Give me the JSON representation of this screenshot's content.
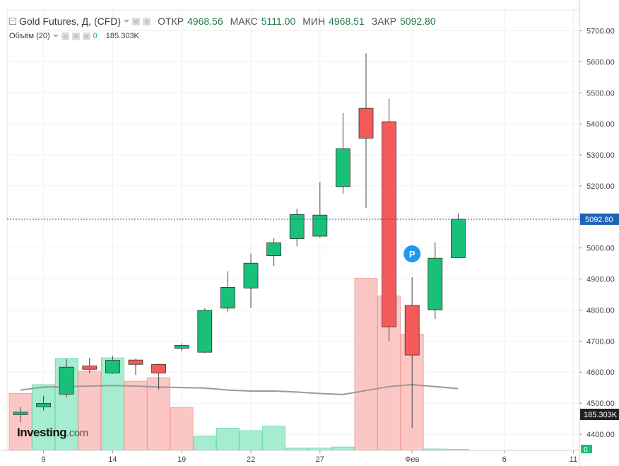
{
  "header": {
    "title": "Gold Futures, Д, (CFD)",
    "ohlc": [
      {
        "label": "ОТКР",
        "value": "4968.56"
      },
      {
        "label": "МАКС",
        "value": "5111.00"
      },
      {
        "label": "МИН",
        "value": "4968.51"
      },
      {
        "label": "ЗАКР",
        "value": "5092.80"
      }
    ]
  },
  "volume_header": {
    "label": "Объём (20)",
    "change": "0",
    "value": "185.303K"
  },
  "logo": {
    "main": "Investing",
    "suffix": ".com"
  },
  "marker": {
    "letter": "P"
  },
  "colors": {
    "up": "#19c078",
    "down": "#f45a5a",
    "vol_up": "#a5ecd0",
    "vol_down": "#fbc7c4",
    "ma": "#999999"
  },
  "chart_data": {
    "type": "candlestick",
    "title": "Gold Futures, Д, (CFD)",
    "y_axis": {
      "ticks": [
        "4400.00",
        "4500.00",
        "4600.00",
        "4700.00",
        "4800.00",
        "4900.00",
        "5000.00",
        "5100.00",
        "5200.00",
        "5300.00",
        "5400.00",
        "5500.00",
        "5600.00",
        "5700.00"
      ],
      "range": [
        4355,
        5728
      ],
      "last_price_label": "5092.80",
      "volume_label": "185.303K",
      "bottom_label": "0"
    },
    "x_axis": {
      "ticks": [
        {
          "label": "9",
          "index": 1
        },
        {
          "label": "14",
          "index": 4
        },
        {
          "label": "19",
          "index": 7
        },
        {
          "label": "22",
          "index": 10
        },
        {
          "label": "27",
          "index": 13
        },
        {
          "label": "Фев",
          "index": 17
        },
        {
          "label": "6",
          "index": 21
        },
        {
          "label": "11",
          "index": 24
        }
      ]
    },
    "candles": [
      {
        "o": 4463,
        "h": 4488,
        "l": 4438,
        "c": 4471
      },
      {
        "o": 4488,
        "h": 4524,
        "l": 4476,
        "c": 4499
      },
      {
        "o": 4529,
        "h": 4642,
        "l": 4520,
        "c": 4616
      },
      {
        "o": 4620,
        "h": 4646,
        "l": 4596,
        "c": 4609
      },
      {
        "o": 4597,
        "h": 4653,
        "l": 4594,
        "c": 4638
      },
      {
        "o": 4639,
        "h": 4643,
        "l": 4591,
        "c": 4625
      },
      {
        "o": 4625,
        "h": 4628,
        "l": 4543,
        "c": 4597
      },
      {
        "o": 4677,
        "h": 4693,
        "l": 4667,
        "c": 4686
      },
      {
        "o": 4664,
        "h": 4806,
        "l": 4662,
        "c": 4799
      },
      {
        "o": 4806,
        "h": 4925,
        "l": 4795,
        "c": 4873
      },
      {
        "o": 4871,
        "h": 4982,
        "l": 4807,
        "c": 4951
      },
      {
        "o": 4975,
        "h": 5031,
        "l": 4942,
        "c": 5017
      },
      {
        "o": 5030,
        "h": 5126,
        "l": 5006,
        "c": 5108
      },
      {
        "o": 5038,
        "h": 5212,
        "l": 5033,
        "c": 5106
      },
      {
        "o": 5198,
        "h": 5435,
        "l": 5175,
        "c": 5320
      },
      {
        "o": 5450,
        "h": 5627,
        "l": 5129,
        "c": 5354
      },
      {
        "o": 5407,
        "h": 5480,
        "l": 4700,
        "c": 4746
      },
      {
        "o": 4815,
        "h": 4906,
        "l": 4419,
        "c": 4655
      },
      {
        "o": 4801,
        "h": 5018,
        "l": 4771,
        "c": 4967
      },
      {
        "o": 4968.56,
        "h": 5111.0,
        "l": 4968.51,
        "c": 5092.8
      }
    ],
    "volume": {
      "max": 600,
      "bars": [
        {
          "v": 115,
          "dir": "down"
        },
        {
          "v": 133,
          "dir": "up"
        },
        {
          "v": 186,
          "dir": "up"
        },
        {
          "v": 160,
          "dir": "down"
        },
        {
          "v": 187,
          "dir": "up"
        },
        {
          "v": 140,
          "dir": "down"
        },
        {
          "v": 147,
          "dir": "down"
        },
        {
          "v": 87,
          "dir": "down"
        },
        {
          "v": 29,
          "dir": "up"
        },
        {
          "v": 45,
          "dir": "up"
        },
        {
          "v": 40,
          "dir": "up"
        },
        {
          "v": 49,
          "dir": "up"
        },
        {
          "v": 5,
          "dir": "up"
        },
        {
          "v": 5,
          "dir": "up"
        },
        {
          "v": 7,
          "dir": "up"
        },
        {
          "v": 348,
          "dir": "down"
        },
        {
          "v": 312,
          "dir": "down"
        },
        {
          "v": 235,
          "dir": "down"
        },
        {
          "v": 3,
          "dir": "up"
        },
        {
          "v": 2,
          "dir": "up"
        }
      ],
      "ma": [
        122,
        128,
        129,
        130,
        131,
        130,
        128,
        127,
        126,
        122,
        120,
        120,
        118,
        115,
        113,
        121,
        129,
        133,
        129,
        125
      ]
    }
  }
}
